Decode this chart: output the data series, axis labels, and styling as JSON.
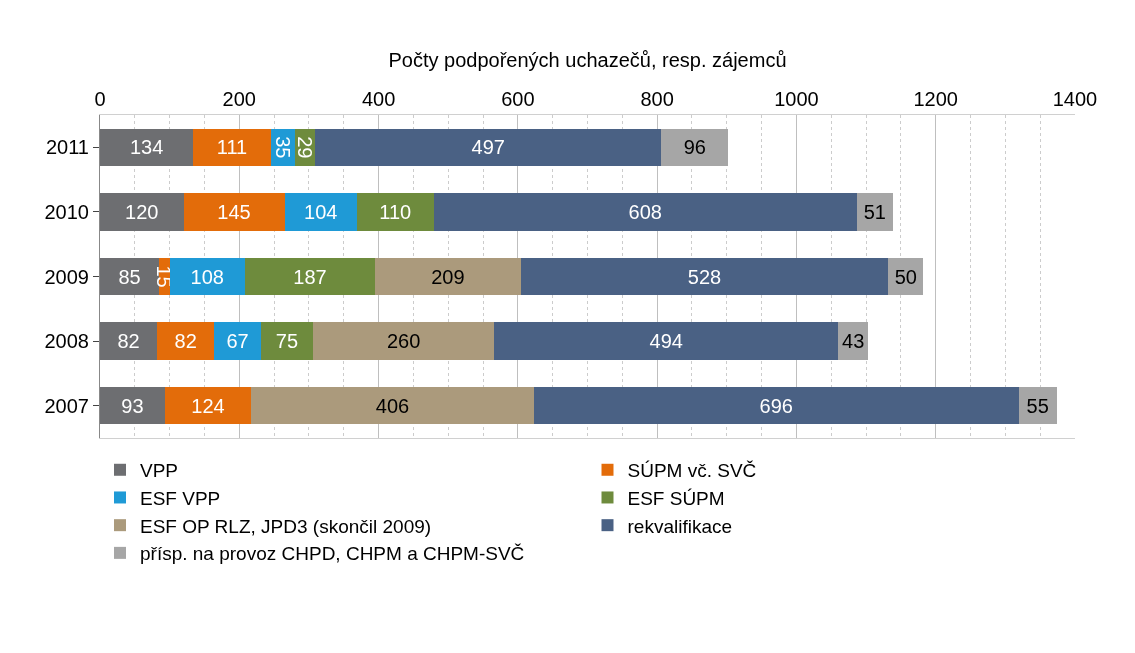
{
  "chart_data": {
    "type": "bar",
    "orientation": "horizontal",
    "stacked": true,
    "data_labels": true,
    "xlabel": "Počty podpořených uchazečů, resp. zájemců",
    "categories": [
      "2011",
      "2010",
      "2009",
      "2008",
      "2007"
    ],
    "series": [
      {
        "name": "VPP",
        "color": "#6d6e71",
        "values": [
          134,
          120,
          85,
          82,
          93
        ]
      },
      {
        "name": "SÚPM vč. SVČ",
        "color": "#e36c0a",
        "values": [
          111,
          145,
          15,
          82,
          124
        ]
      },
      {
        "name": "ESF VPP",
        "color": "#1f9ad6",
        "values": [
          35,
          104,
          108,
          67,
          null
        ]
      },
      {
        "name": "ESF SÚPM",
        "color": "#6e8b3d",
        "values": [
          29,
          110,
          187,
          75,
          null
        ]
      },
      {
        "name": "ESF OP RLZ, JPD3 (skončil 2009)",
        "color": "#ab9a7c",
        "values": [
          null,
          null,
          209,
          260,
          406
        ]
      },
      {
        "name": "rekvalifikace",
        "color": "#4a6184",
        "values": [
          497,
          608,
          528,
          494,
          696
        ]
      },
      {
        "name": "přísp. na provoz CHPD, CHPM a CHPM-SVČ",
        "color": "#a6a6a6",
        "values": [
          96,
          51,
          50,
          43,
          55
        ]
      }
    ],
    "xlim": [
      0,
      1400
    ],
    "xticks": [
      0,
      200,
      400,
      600,
      800,
      1000,
      1200,
      1400
    ],
    "grid": "x",
    "legend": "bottom"
  }
}
